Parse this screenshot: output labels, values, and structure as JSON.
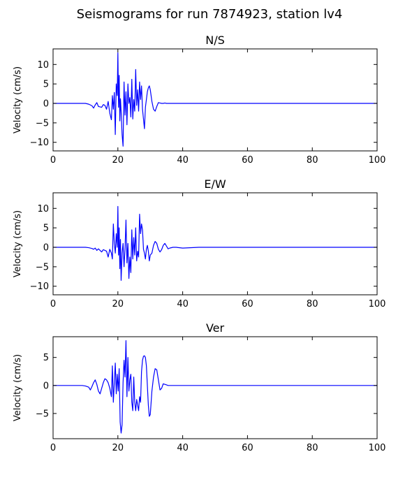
{
  "figure": {
    "suptitle": "Seismograms for run 7874923, station lv4"
  },
  "colors": {
    "trace": "#0000ff",
    "axes": "#000000",
    "background": "#ffffff"
  },
  "chart_data": [
    {
      "type": "line",
      "title": "N/S",
      "xlabel": "",
      "ylabel": "Velocity (cm/s)",
      "xlim": [
        0,
        100
      ],
      "ylim": [
        -12.2,
        14.0
      ],
      "xticks": [
        0,
        20,
        40,
        60,
        80,
        100
      ],
      "yticks": [
        -10,
        -5,
        0,
        5,
        10
      ],
      "grid": false,
      "series": [
        {
          "x": [
            0,
            5,
            10,
            11,
            12,
            12.5,
            13,
            13.5,
            14,
            15,
            15.5,
            16,
            16.5,
            17,
            17.5,
            18,
            18.3,
            18.6,
            18.9,
            19.2,
            19.5,
            19.8,
            20,
            20.2,
            20.4,
            20.6,
            20.8,
            21,
            21.3,
            21.6,
            21.9,
            22.2,
            22.5,
            22.8,
            23.1,
            23.4,
            23.7,
            24,
            24.3,
            24.6,
            24.9,
            25.2,
            25.5,
            25.8,
            26.1,
            26.4,
            26.7,
            27,
            27.3,
            27.6,
            27.9,
            28.2,
            28.5,
            28.8,
            29.1,
            29.4,
            29.7,
            30,
            30.5,
            31,
            31.5,
            32,
            32.5,
            33,
            33.5,
            34,
            34.5,
            35,
            36,
            37,
            38,
            39,
            40,
            45,
            50,
            60,
            70,
            80,
            90,
            100
          ],
          "values": [
            0,
            0,
            0,
            -0.2,
            -0.6,
            -1.2,
            -0.4,
            0.2,
            -0.8,
            -1.0,
            -0.3,
            -0.5,
            -1.5,
            0.5,
            -2.5,
            -4.2,
            2.0,
            -1.5,
            2.8,
            -8.0,
            5.0,
            2.0,
            13.0,
            -1.0,
            7.2,
            -4.5,
            1.2,
            -2.0,
            -8.0,
            -11.0,
            5.5,
            -3.0,
            3.0,
            -5.5,
            5.0,
            0.0,
            1.5,
            -3.5,
            6.2,
            -4.0,
            1.0,
            -2.0,
            8.7,
            -0.5,
            3.5,
            -2.0,
            5.5,
            1.0,
            4.5,
            -1.5,
            -4.0,
            -6.5,
            -1.0,
            1.0,
            3.0,
            4.0,
            4.5,
            3.5,
            0.5,
            -1.5,
            -2.0,
            -0.8,
            0.2,
            0.1,
            0,
            0,
            0.1,
            0,
            0,
            0,
            0,
            0,
            0,
            0,
            0,
            0,
            0,
            0,
            0,
            0
          ]
        }
      ]
    },
    {
      "type": "line",
      "title": "E/W",
      "xlabel": "",
      "ylabel": "Velocity (cm/s)",
      "xlim": [
        0,
        100
      ],
      "ylim": [
        -12.2,
        14.0
      ],
      "xticks": [
        0,
        20,
        40,
        60,
        80,
        100
      ],
      "yticks": [
        -10,
        -5,
        0,
        5,
        10
      ],
      "grid": false,
      "series": [
        {
          "x": [
            0,
            5,
            10,
            11,
            12,
            12.5,
            13,
            13.5,
            14,
            15,
            15.5,
            16,
            16.5,
            17,
            17.5,
            18,
            18.3,
            18.6,
            18.9,
            19.2,
            19.5,
            19.8,
            20,
            20.2,
            20.4,
            20.6,
            20.8,
            21,
            21.3,
            21.6,
            21.9,
            22.2,
            22.5,
            22.8,
            23.1,
            23.4,
            23.7,
            24,
            24.3,
            24.6,
            24.9,
            25.2,
            25.5,
            25.8,
            26.1,
            26.4,
            26.7,
            27,
            27.3,
            27.6,
            27.9,
            28.2,
            28.5,
            28.8,
            29.1,
            29.4,
            29.7,
            30,
            30.5,
            31,
            31.5,
            32,
            32.5,
            33,
            33.5,
            34,
            34.5,
            35,
            35.5,
            36,
            37,
            38,
            40,
            45,
            50,
            60,
            70,
            80,
            90,
            100
          ],
          "values": [
            0,
            0,
            0,
            -0.1,
            -0.3,
            -0.5,
            -0.2,
            -0.8,
            -0.4,
            -1.2,
            -0.6,
            -0.8,
            -1.0,
            -2.5,
            -0.5,
            -1.5,
            -3.0,
            6.0,
            1.0,
            -1.5,
            3.5,
            0.0,
            10.5,
            -2.0,
            5.0,
            -5.5,
            2.0,
            -8.5,
            -1.5,
            1.0,
            -5.0,
            -0.5,
            7.0,
            -4.0,
            1.0,
            -8.0,
            -2.5,
            -6.5,
            4.5,
            -3.0,
            2.5,
            -2.0,
            5.0,
            -3.5,
            -1.0,
            -2.5,
            8.5,
            3.5,
            6.0,
            4.5,
            -0.5,
            -1.5,
            -3.0,
            -0.5,
            0.5,
            -1.0,
            -3.5,
            -2.0,
            -1.5,
            0.5,
            1.5,
            1.0,
            -0.5,
            -1.2,
            -0.6,
            0.5,
            1.0,
            0.3,
            -0.4,
            -0.2,
            0.0,
            0,
            -0.2,
            0,
            0,
            0,
            0,
            0,
            0,
            0
          ]
        }
      ]
    },
    {
      "type": "line",
      "title": "Ver",
      "xlabel": "",
      "ylabel": "Velocity (cm/s)",
      "xlim": [
        0,
        100
      ],
      "ylim": [
        -9.5,
        8.7
      ],
      "xticks": [
        0,
        20,
        40,
        60,
        80,
        100
      ],
      "yticks": [
        -5,
        0,
        5
      ],
      "grid": false,
      "series": [
        {
          "x": [
            0,
            5,
            9,
            10,
            11,
            11.5,
            12,
            12.5,
            13,
            13.5,
            14,
            14.5,
            15,
            15.5,
            16,
            16.5,
            17,
            17.5,
            18,
            18.3,
            18.6,
            18.9,
            19.2,
            19.5,
            19.8,
            20.1,
            20.4,
            20.7,
            21,
            21.3,
            21.6,
            21.9,
            22.2,
            22.5,
            22.8,
            23.1,
            23.4,
            23.7,
            24,
            24.3,
            24.6,
            24.9,
            25.2,
            25.5,
            25.8,
            26.1,
            26.4,
            26.7,
            27,
            27.3,
            27.6,
            27.9,
            28.2,
            28.5,
            28.8,
            29.1,
            29.4,
            29.7,
            30,
            30.5,
            31,
            31.5,
            32,
            32.5,
            33,
            33.5,
            34,
            34.5,
            35,
            35.5,
            36,
            37,
            38,
            40,
            45,
            50,
            60,
            70,
            80,
            90,
            100
          ],
          "values": [
            0,
            0,
            0,
            -0.1,
            -0.3,
            -0.8,
            -0.2,
            0.5,
            1.0,
            0.2,
            -1.0,
            -1.5,
            -0.5,
            0.5,
            1.2,
            1.0,
            0.5,
            -0.5,
            -2.0,
            3.5,
            -3.0,
            0.5,
            4.0,
            -1.5,
            2.0,
            -1.0,
            3.0,
            -6.5,
            -8.5,
            -7.0,
            0.5,
            4.5,
            1.5,
            8.0,
            -2.0,
            5.0,
            -1.0,
            1.0,
            2.0,
            -3.0,
            -4.5,
            1.5,
            -3.0,
            -4.5,
            -2.5,
            -3.5,
            -4.5,
            -2.0,
            -3.0,
            2.5,
            4.5,
            5.2,
            5.3,
            5.0,
            3.5,
            0.0,
            -3.5,
            -5.5,
            -5.2,
            -1.0,
            1.5,
            3.0,
            2.8,
            1.0,
            -0.8,
            -0.5,
            0.3,
            0.2,
            0.1,
            0,
            0,
            0,
            0,
            0,
            0,
            0,
            0,
            0,
            0,
            0,
            0
          ]
        }
      ]
    }
  ]
}
